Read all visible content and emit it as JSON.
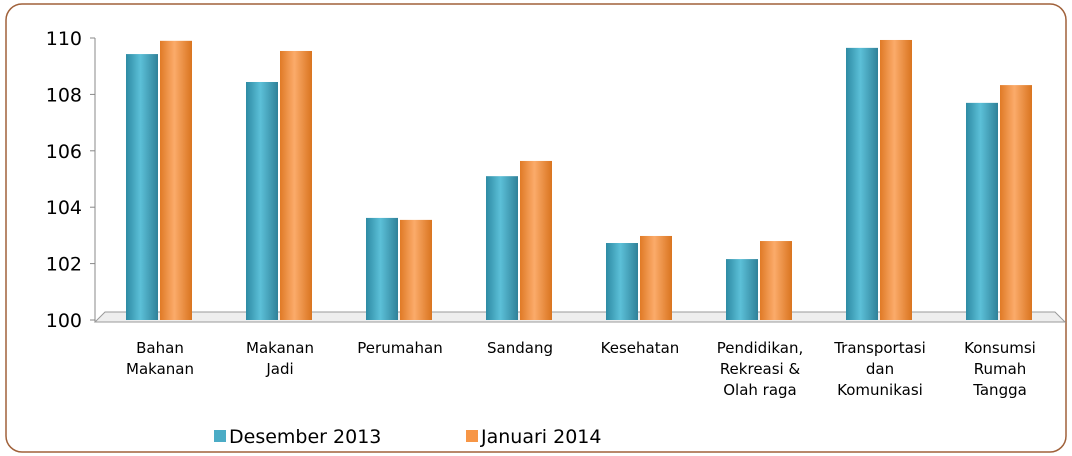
{
  "chart_data": {
    "type": "bar",
    "categories": [
      "Bahan\nMakanan",
      "Makanan\nJadi",
      "Perumahan",
      "Sandang",
      "Kesehatan",
      "Pendidikan,\nRekreasi &\nOlah raga",
      "Transportasi\ndan\nKomunikasi",
      "Konsumsi\nRumah\nTangga"
    ],
    "series": [
      {
        "name": "Desember 2013",
        "color": "#4bacc6",
        "values": [
          109.43,
          108.44,
          103.62,
          105.1,
          102.73,
          102.16,
          109.65,
          107.7
        ]
      },
      {
        "name": "Januari 2014",
        "color": "#f79646",
        "values": [
          109.9,
          109.54,
          103.55,
          105.64,
          102.98,
          102.8,
          109.93,
          108.33
        ]
      }
    ],
    "ylim": [
      100,
      110
    ],
    "yticks": [
      100,
      102,
      104,
      106,
      108,
      110
    ],
    "legend": "bottom"
  }
}
